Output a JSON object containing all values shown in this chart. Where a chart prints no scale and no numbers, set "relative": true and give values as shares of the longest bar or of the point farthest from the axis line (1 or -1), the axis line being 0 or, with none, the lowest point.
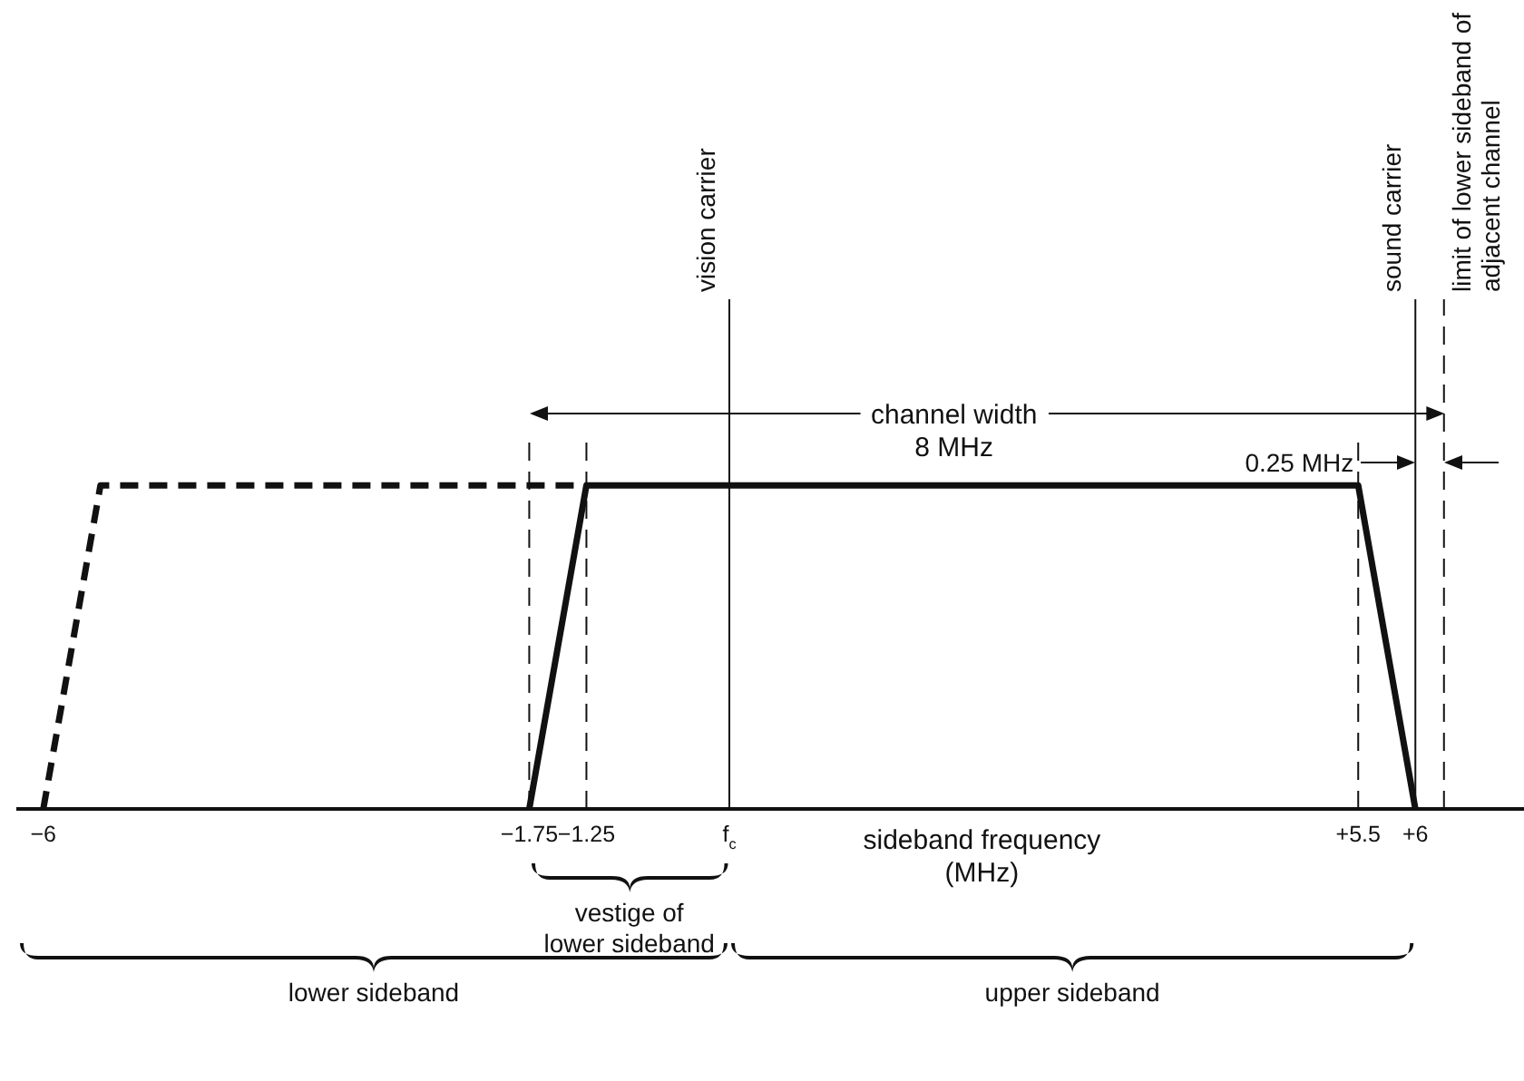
{
  "chart_data": {
    "type": "line",
    "relative": true,
    "xlabel": "sideband frequency\n(MHz)",
    "xlim": [
      -6.22,
      6.95
    ],
    "xticks": [
      {
        "value": -6,
        "label": "−6"
      },
      {
        "value": -1.75,
        "label": "−1.75"
      },
      {
        "value": -1.25,
        "label": "−1.25"
      },
      {
        "value": 0,
        "label": "f$_{c}$"
      },
      {
        "value": 5.5,
        "label": "+5.5"
      },
      {
        "value": 6,
        "label": "+6"
      }
    ],
    "series": [
      {
        "x": [
          -1.75,
          -1.25,
          5.5,
          6
        ],
        "values": [
          0,
          1,
          1,
          0
        ],
        "color": "#111111",
        "line_style": "solid"
      },
      {
        "x": [
          -6,
          -5.5,
          -1.25
        ],
        "values": [
          0,
          1,
          1
        ],
        "color": "#111111",
        "line_style": "dashed"
      }
    ],
    "ref_lines": [
      {
        "axis": "x",
        "value": -1.75,
        "line_style": "dashed"
      },
      {
        "axis": "x",
        "value": -1.25,
        "line_style": "dashed"
      },
      {
        "axis": "x",
        "value": 0,
        "label": "vision carrier",
        "line_style": "solid"
      },
      {
        "axis": "x",
        "value": 5.5,
        "line_style": "dashed"
      },
      {
        "axis": "x",
        "value": 6,
        "label": "sound carrier",
        "line_style": "solid"
      },
      {
        "axis": "x",
        "value": 6.25,
        "label": "limit of lower sideband of\nadjacent channel",
        "line_style": "dashed"
      }
    ],
    "annotations": [
      "channel width\n8 MHz",
      "0.25 MHz",
      "vestige of\nlower sideband",
      "lower sideband",
      "upper sideband"
    ],
    "grid": false,
    "legend": false,
    "marker": "none"
  }
}
